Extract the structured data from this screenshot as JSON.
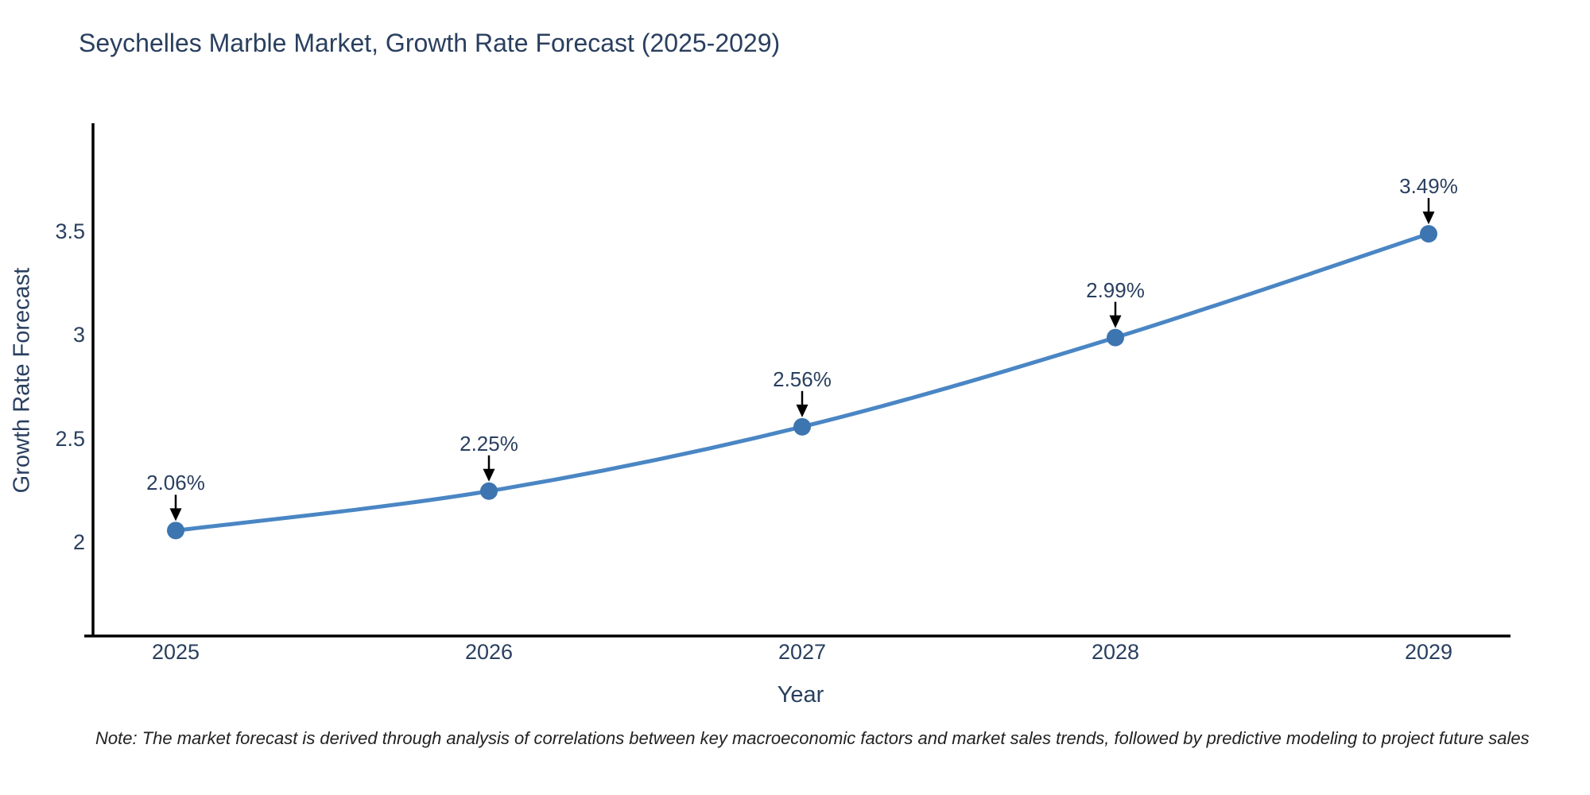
{
  "page": {
    "background": "#ffffff"
  },
  "chart_data": {
    "type": "line",
    "title": "Seychelles Marble Market, Growth Rate Forecast (2025-2029)",
    "xlabel": "Year",
    "ylabel": "Growth Rate Forecast",
    "categories": [
      "2025",
      "2026",
      "2027",
      "2028",
      "2029"
    ],
    "values": [
      2.06,
      2.25,
      2.56,
      2.99,
      3.49
    ],
    "point_labels": [
      "2.06%",
      "2.25%",
      "2.56%",
      "2.99%",
      "3.49%"
    ],
    "y_ticks": [
      "3.5",
      "3",
      "2.5",
      "2"
    ],
    "ylim": [
      1.55,
      4.05
    ],
    "grid": false,
    "legend": "none",
    "line_shape": "spline",
    "annotation_arrows": true,
    "colors": {
      "line": "#4a86c4",
      "marker": "#3c75b0",
      "axis": "#000000",
      "text": "#2a3f5f",
      "note": "#222222"
    },
    "note": "Note: The market forecast is derived through analysis of correlations between key macroeconomic factors and market sales trends, followed by predictive modeling to project future sales"
  }
}
